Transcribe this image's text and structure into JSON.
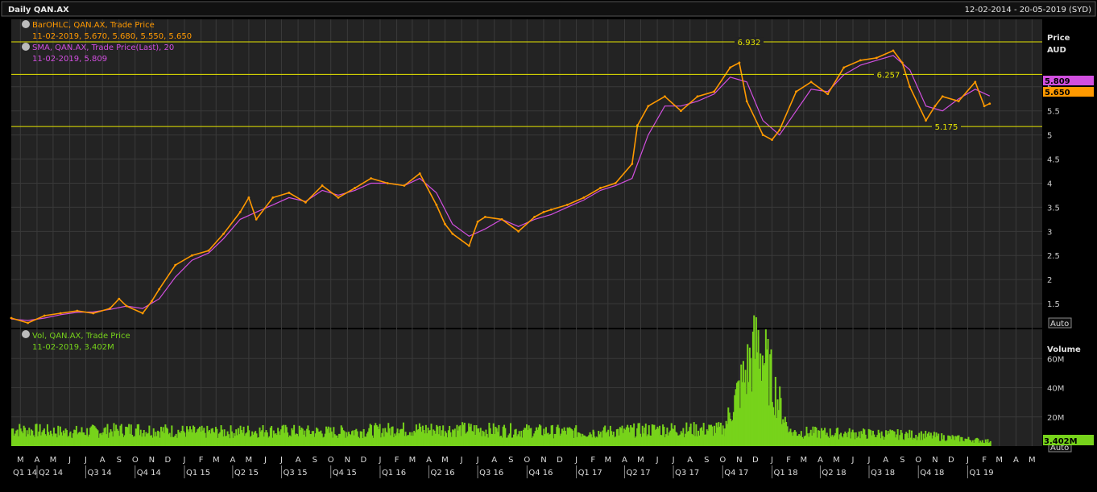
{
  "header": {
    "title": "Daily QAN.AX",
    "date_range": "12-02-2014 - 20-05-2019 (SYD)"
  },
  "colors": {
    "background": "#232323",
    "grid": "#3a3a3a",
    "price": "#ff9900",
    "sma": "#d24fe0",
    "volume": "#77d31b",
    "hline": "#e6e600",
    "header_bg": "#111111",
    "text": "#dcdcdc"
  },
  "legend": {
    "bar_title": "BarOHLC, QAN.AX, Trade Price",
    "bar_values": "11-02-2019, 5.670, 5.680, 5.550, 5.650",
    "sma_title": "SMA, QAN.AX, Trade Price(Last), 20",
    "sma_values": "11-02-2019, 5.809",
    "vol_title": "Vol, QAN.AX, Trade Price",
    "vol_values": "11-02-2019, 3.402M"
  },
  "price_axis": {
    "title": "Price",
    "unit": "AUD",
    "ticks": [
      "6",
      "5.5",
      "5",
      "4.5",
      "4",
      "3.5",
      "3",
      "2.5",
      "2",
      "1.5"
    ],
    "auto_label": "Auto",
    "last_sma_label": "5.809",
    "last_price_label": "5.650"
  },
  "volume_axis": {
    "title": "Volume",
    "ticks": [
      "60M",
      "40M",
      "20M"
    ],
    "auto_label": "Auto",
    "last_volume_label": "3.402M"
  },
  "horizontal_lines": [
    {
      "value": 6.932,
      "label": "6.932"
    },
    {
      "value": 6.257,
      "label": "6.257"
    },
    {
      "value": 5.175,
      "label": "5.175"
    }
  ],
  "time_axis": {
    "month_labels": [
      "M",
      "A",
      "M",
      "J",
      "J",
      "A",
      "S",
      "O",
      "N",
      "D",
      "J",
      "F",
      "M",
      "A",
      "M",
      "J",
      "J",
      "A",
      "S",
      "O",
      "N",
      "D",
      "J",
      "F",
      "M",
      "A",
      "M",
      "J",
      "J",
      "A",
      "S",
      "O",
      "N",
      "D",
      "J",
      "F",
      "M",
      "A",
      "M",
      "J",
      "J",
      "A",
      "S",
      "O",
      "N",
      "D",
      "J",
      "F",
      "M",
      "A",
      "M",
      "J",
      "J",
      "A",
      "S",
      "O",
      "N",
      "D",
      "J",
      "F",
      "M",
      "A",
      "M"
    ],
    "quarter_labels": [
      "Q1 14",
      "Q2 14",
      "Q3 14",
      "Q4 14",
      "Q1 15",
      "Q2 15",
      "Q3 15",
      "Q4 15",
      "Q1 16",
      "Q2 16",
      "Q3 16",
      "Q4 16",
      "Q1 17",
      "Q2 17",
      "Q3 17",
      "Q4 17",
      "Q1 18",
      "Q2 18",
      "Q3 18",
      "Q4 18",
      "Q1 19"
    ]
  },
  "chart_data": {
    "type": "line",
    "title": "Daily QAN.AX",
    "x_range": [
      "2014-02-12",
      "2019-05-20"
    ],
    "price_ylim": [
      1,
      7.4
    ],
    "volume_ylim": [
      0,
      80
    ],
    "volume_unit": "M",
    "grid": true,
    "series": [
      {
        "name": "BarOHLC, QAN.AX, Trade Price",
        "x": [
          "2014-02-12",
          "2014-03-15",
          "2014-04-15",
          "2014-05-15",
          "2014-06-15",
          "2014-07-15",
          "2014-08-15",
          "2014-09-01",
          "2014-09-15",
          "2014-10-15",
          "2014-11-01",
          "2014-11-15",
          "2014-12-15",
          "2015-01-15",
          "2015-02-15",
          "2015-03-15",
          "2015-04-15",
          "2015-05-01",
          "2015-05-15",
          "2015-06-15",
          "2015-07-15",
          "2015-08-15",
          "2015-09-15",
          "2015-10-15",
          "2015-11-15",
          "2015-12-15",
          "2016-01-15",
          "2016-02-15",
          "2016-03-15",
          "2016-04-15",
          "2016-05-01",
          "2016-05-15",
          "2016-06-15",
          "2016-07-01",
          "2016-07-15",
          "2016-08-15",
          "2016-09-15",
          "2016-10-15",
          "2016-11-01",
          "2016-11-15",
          "2016-12-15",
          "2017-01-15",
          "2017-02-15",
          "2017-03-15",
          "2017-04-15",
          "2017-04-25",
          "2017-05-15",
          "2017-06-15",
          "2017-07-15",
          "2017-08-15",
          "2017-09-15",
          "2017-10-15",
          "2017-11-01",
          "2017-11-15",
          "2017-12-15",
          "2018-01-01",
          "2018-01-15",
          "2018-02-15",
          "2018-03-15",
          "2018-04-15",
          "2018-05-15",
          "2018-06-15",
          "2018-07-15",
          "2018-08-15",
          "2018-09-01",
          "2018-09-15",
          "2018-10-15",
          "2018-11-01",
          "2018-11-15",
          "2018-12-15",
          "2019-01-15",
          "2019-02-01",
          "2019-02-11"
        ],
        "values": [
          1.2,
          1.1,
          1.25,
          1.3,
          1.35,
          1.3,
          1.4,
          1.6,
          1.45,
          1.3,
          1.55,
          1.8,
          2.3,
          2.5,
          2.6,
          2.95,
          3.4,
          3.7,
          3.25,
          3.7,
          3.8,
          3.6,
          3.95,
          3.7,
          3.9,
          4.1,
          4.0,
          3.95,
          4.2,
          3.55,
          3.15,
          2.95,
          2.7,
          3.2,
          3.3,
          3.25,
          3.0,
          3.3,
          3.4,
          3.45,
          3.55,
          3.7,
          3.9,
          4.0,
          4.4,
          5.2,
          5.6,
          5.8,
          5.5,
          5.8,
          5.9,
          6.4,
          6.5,
          5.7,
          5.0,
          4.9,
          5.1,
          5.9,
          6.1,
          5.85,
          6.4,
          6.55,
          6.6,
          6.75,
          6.5,
          6.0,
          5.3,
          5.6,
          5.8,
          5.7,
          6.1,
          5.6,
          5.65
        ]
      },
      {
        "name": "SMA, QAN.AX, Trade Price(Last), 20",
        "x": [
          "2014-02-12",
          "2014-03-15",
          "2014-04-15",
          "2014-05-15",
          "2014-06-15",
          "2014-07-15",
          "2014-08-15",
          "2014-09-15",
          "2014-10-15",
          "2014-11-15",
          "2014-12-15",
          "2015-01-15",
          "2015-02-15",
          "2015-03-15",
          "2015-04-15",
          "2015-05-15",
          "2015-06-15",
          "2015-07-15",
          "2015-08-15",
          "2015-09-15",
          "2015-10-15",
          "2015-11-15",
          "2015-12-15",
          "2016-01-15",
          "2016-02-15",
          "2016-03-15",
          "2016-04-15",
          "2016-05-15",
          "2016-06-15",
          "2016-07-15",
          "2016-08-15",
          "2016-09-15",
          "2016-10-15",
          "2016-11-15",
          "2016-12-15",
          "2017-01-15",
          "2017-02-15",
          "2017-03-15",
          "2017-04-15",
          "2017-05-15",
          "2017-06-15",
          "2017-07-15",
          "2017-08-15",
          "2017-09-15",
          "2017-10-15",
          "2017-11-15",
          "2017-12-15",
          "2018-01-15",
          "2018-02-15",
          "2018-03-15",
          "2018-04-15",
          "2018-05-15",
          "2018-06-15",
          "2018-07-15",
          "2018-08-15",
          "2018-09-15",
          "2018-10-15",
          "2018-11-15",
          "2018-12-15",
          "2019-01-15",
          "2019-02-11"
        ],
        "values": [
          1.18,
          1.15,
          1.2,
          1.27,
          1.32,
          1.33,
          1.38,
          1.45,
          1.4,
          1.6,
          2.05,
          2.4,
          2.55,
          2.85,
          3.25,
          3.4,
          3.55,
          3.7,
          3.62,
          3.85,
          3.75,
          3.85,
          4.0,
          4.0,
          3.95,
          4.1,
          3.8,
          3.15,
          2.9,
          3.05,
          3.25,
          3.1,
          3.25,
          3.35,
          3.5,
          3.65,
          3.85,
          3.95,
          4.1,
          5.0,
          5.6,
          5.6,
          5.7,
          5.85,
          6.2,
          6.1,
          5.3,
          5.0,
          5.5,
          5.95,
          5.9,
          6.25,
          6.45,
          6.55,
          6.65,
          6.35,
          5.6,
          5.5,
          5.75,
          5.95,
          5.81
        ]
      },
      {
        "name": "Vol, QAN.AX, Trade Price",
        "x": [
          "2014-02-12",
          "2014-06-01",
          "2014-10-01",
          "2015-02-01",
          "2015-06-01",
          "2015-10-01",
          "2016-02-01",
          "2016-06-01",
          "2016-10-01",
          "2017-02-01",
          "2017-06-01",
          "2017-10-01",
          "2017-12-05",
          "2018-02-01",
          "2018-06-01",
          "2018-10-01",
          "2019-02-11"
        ],
        "values": [
          12,
          10,
          12,
          10,
          11,
          10,
          12,
          12,
          11,
          10,
          12,
          12,
          75,
          10,
          9,
          8,
          3.402
        ]
      }
    ]
  }
}
